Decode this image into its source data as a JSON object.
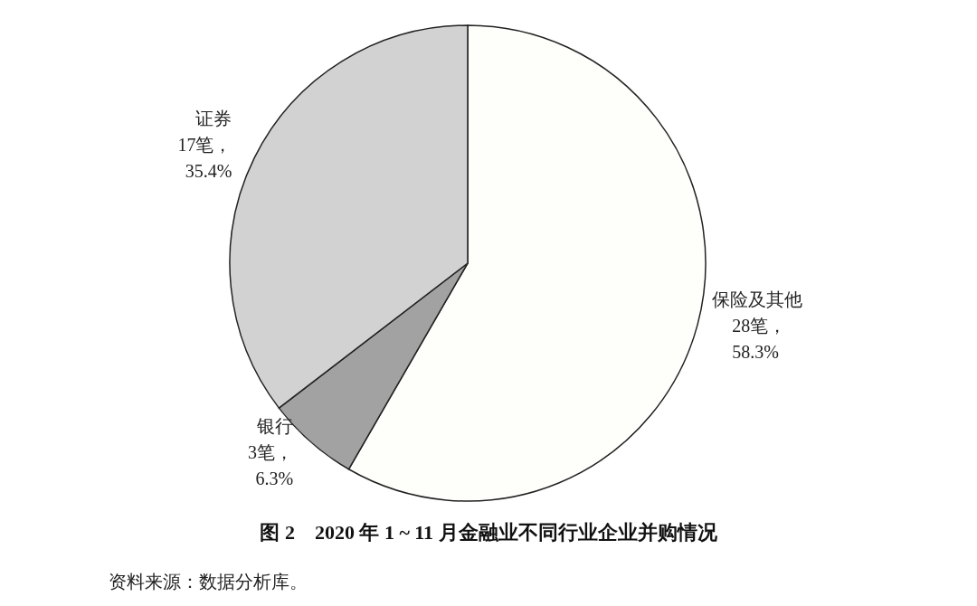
{
  "chart_data": {
    "type": "pie",
    "title": "图 2　2020 年 1 ~ 11 月金融业不同行业企业并购情况",
    "categories": [
      "保险及其他",
      "银行",
      "证券"
    ],
    "values": [
      28,
      3,
      17
    ],
    "value_labels": [
      "28笔，\n58.3%",
      "3笔，\n6.3%",
      "17笔，\n35.4%"
    ],
    "colors": [
      "#fefefa",
      "#a2a2a2",
      "#d2d2d2"
    ],
    "legend": false,
    "annotations": [
      "资料来源：数据分析库。"
    ]
  }
}
